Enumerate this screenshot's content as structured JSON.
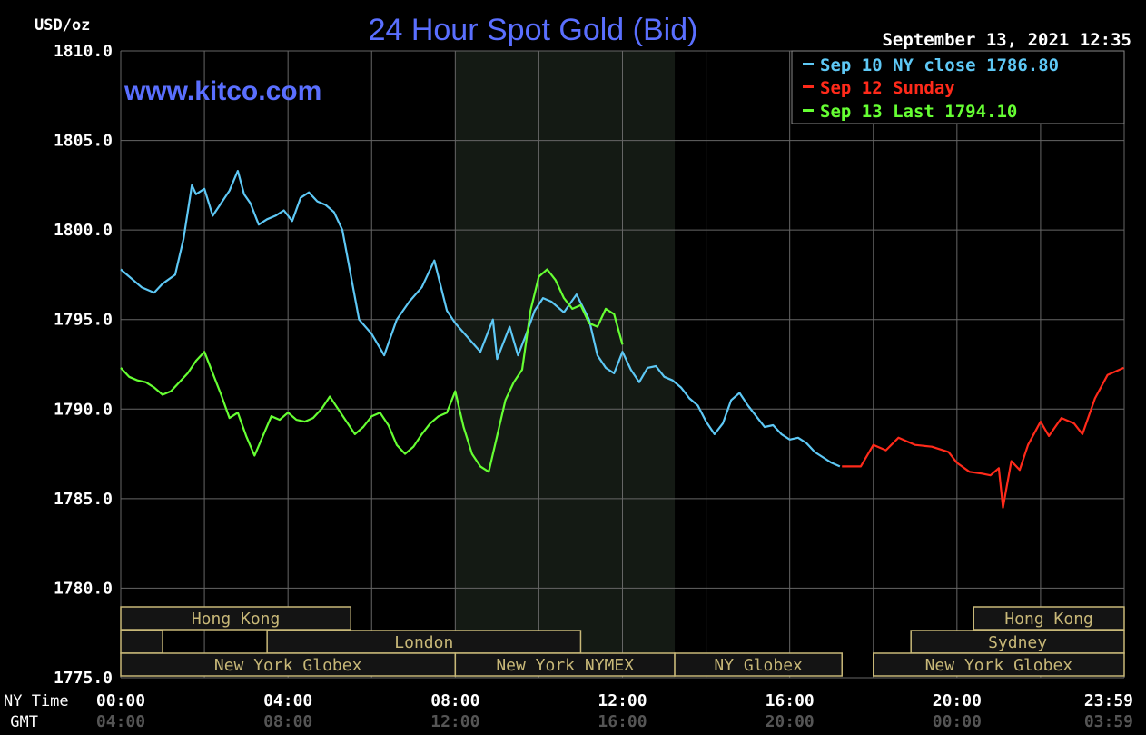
{
  "colors": {
    "background": "#000000",
    "grid": "#666666",
    "axis_text": "#ffffff",
    "gmt_text": "#555555",
    "title": "#5a6fff",
    "session_box": "#c8b878",
    "session_fill": "#141414",
    "highlight": "#141a14",
    "series_sep10": "#5ec8f5",
    "series_sep12": "#ff2a1a",
    "series_sep13": "#66ff33"
  },
  "chart_data": {
    "type": "line",
    "title": "24 Hour Spot Gold (Bid)",
    "watermark": "www.kitco.com",
    "timestamp": "September 13, 2021 12:35",
    "ylabel": "USD/oz",
    "ylim": [
      1775.0,
      1810.0
    ],
    "yticks": [
      "1810.0",
      "1805.0",
      "1800.0",
      "1795.0",
      "1790.0",
      "1785.0",
      "1780.0",
      "1775.0"
    ],
    "xlim": [
      0,
      24
    ],
    "x_row_label": "NY Time",
    "gmt_row_label": "GMT",
    "xtick_labels": [
      "00:00",
      "04:00",
      "08:00",
      "12:00",
      "16:00",
      "20:00",
      "23:59"
    ],
    "gmt_tick_labels": [
      "04:00",
      "08:00",
      "12:00",
      "16:00",
      "20:00",
      "00:00",
      "03:59"
    ],
    "highlight_hours": [
      8.0,
      13.25
    ],
    "legend": [
      {
        "text": "Sep 10 NY close 1786.80",
        "color": "#5ec8f5"
      },
      {
        "text": "Sep 12 Sunday",
        "color": "#ff2a1a"
      },
      {
        "text": "Sep 13 Last 1794.10",
        "color": "#66ff33"
      }
    ],
    "sessions": [
      {
        "label": "Hong Kong",
        "row": 0,
        "start": 0.0,
        "end": 5.5
      },
      {
        "label": "Hong Kong",
        "row": 0,
        "start": 20.4,
        "end": 24.0
      },
      {
        "label": "",
        "row": 1,
        "start": 0.0,
        "end": 1.0
      },
      {
        "label": "London",
        "row": 1,
        "start": 3.5,
        "end": 11.0
      },
      {
        "label": "Sydney",
        "row": 1,
        "start": 18.9,
        "end": 24.0
      },
      {
        "label": "New York Globex",
        "row": 2,
        "start": 0.0,
        "end": 8.0
      },
      {
        "label": "New York NYMEX",
        "row": 2,
        "start": 8.0,
        "end": 13.25
      },
      {
        "label": "NY Globex",
        "row": 2,
        "start": 13.25,
        "end": 17.25
      },
      {
        "label": "New York Globex",
        "row": 2,
        "start": 18.0,
        "end": 24.0
      }
    ],
    "series": [
      {
        "name": "Sep 10 NY close 1786.80",
        "color": "#5ec8f5",
        "x": [
          0.0,
          0.3,
          0.5,
          0.8,
          1.0,
          1.3,
          1.5,
          1.7,
          1.8,
          2.0,
          2.2,
          2.4,
          2.6,
          2.8,
          2.95,
          3.1,
          3.3,
          3.5,
          3.7,
          3.9,
          4.1,
          4.3,
          4.5,
          4.7,
          4.9,
          5.1,
          5.3,
          5.5,
          5.7,
          6.0,
          6.3,
          6.6,
          6.9,
          7.2,
          7.5,
          7.8,
          8.0,
          8.3,
          8.6,
          8.9,
          9.0,
          9.3,
          9.5,
          9.7,
          9.9,
          10.1,
          10.3,
          10.6,
          10.9,
          11.2,
          11.4,
          11.6,
          11.8,
          12.0,
          12.2,
          12.4,
          12.6,
          12.8,
          13.0,
          13.2,
          13.4,
          13.6,
          13.8,
          14.0,
          14.2,
          14.4,
          14.6,
          14.8,
          15.0,
          15.2,
          15.4,
          15.6,
          15.8,
          16.0,
          16.2,
          16.4,
          16.6,
          16.8,
          17.0,
          17.2
        ],
        "values": [
          1797.8,
          1797.2,
          1796.8,
          1796.5,
          1797.0,
          1797.5,
          1799.5,
          1802.5,
          1802.0,
          1802.3,
          1800.8,
          1801.5,
          1802.2,
          1803.3,
          1802.0,
          1801.5,
          1800.3,
          1800.6,
          1800.8,
          1801.1,
          1800.5,
          1801.8,
          1802.1,
          1801.6,
          1801.4,
          1801.0,
          1800.0,
          1797.5,
          1795.0,
          1794.2,
          1793.0,
          1795.0,
          1796.0,
          1796.8,
          1798.3,
          1795.5,
          1794.8,
          1794.0,
          1793.2,
          1795.0,
          1792.8,
          1794.6,
          1793.0,
          1794.2,
          1795.5,
          1796.2,
          1796.0,
          1795.4,
          1796.4,
          1795.0,
          1793.0,
          1792.3,
          1792.0,
          1793.2,
          1792.2,
          1791.5,
          1792.3,
          1792.4,
          1791.8,
          1791.6,
          1791.2,
          1790.6,
          1790.2,
          1789.3,
          1788.6,
          1789.2,
          1790.5,
          1790.9,
          1790.2,
          1789.6,
          1789.0,
          1789.1,
          1788.6,
          1788.3,
          1788.4,
          1788.1,
          1787.6,
          1787.3,
          1787.0,
          1786.8
        ]
      },
      {
        "name": "Sep 12 Sunday",
        "color": "#ff2a1a",
        "x": [
          17.25,
          17.7,
          18.0,
          18.3,
          18.6,
          19.0,
          19.4,
          19.8,
          20.0,
          20.3,
          20.6,
          20.8,
          21.0,
          21.1,
          21.3,
          21.5,
          21.7,
          22.0,
          22.2,
          22.5,
          22.8,
          23.0,
          23.3,
          23.6,
          23.99
        ],
        "values": [
          1786.8,
          1786.8,
          1788.0,
          1787.7,
          1788.4,
          1788.0,
          1787.9,
          1787.6,
          1787.0,
          1786.5,
          1786.4,
          1786.3,
          1786.7,
          1784.5,
          1787.1,
          1786.6,
          1788.0,
          1789.3,
          1788.5,
          1789.5,
          1789.2,
          1788.6,
          1790.6,
          1791.9,
          1792.3
        ]
      },
      {
        "name": "Sep 13 Last 1794.10",
        "color": "#66ff33",
        "x": [
          0.0,
          0.2,
          0.4,
          0.6,
          0.8,
          1.0,
          1.2,
          1.4,
          1.6,
          1.8,
          2.0,
          2.2,
          2.4,
          2.6,
          2.8,
          3.0,
          3.2,
          3.4,
          3.6,
          3.8,
          4.0,
          4.2,
          4.4,
          4.6,
          4.8,
          5.0,
          5.2,
          5.4,
          5.6,
          5.8,
          6.0,
          6.2,
          6.4,
          6.6,
          6.8,
          7.0,
          7.2,
          7.4,
          7.6,
          7.8,
          8.0,
          8.2,
          8.4,
          8.6,
          8.8,
          9.0,
          9.2,
          9.4,
          9.6,
          9.8,
          10.0,
          10.2,
          10.4,
          10.6,
          10.8,
          11.0,
          11.2,
          11.4,
          11.6,
          11.8,
          12.0
        ],
        "values": [
          1792.3,
          1791.8,
          1791.6,
          1791.5,
          1791.2,
          1790.8,
          1791.0,
          1791.5,
          1792.0,
          1792.7,
          1793.2,
          1792.0,
          1790.8,
          1789.5,
          1789.8,
          1788.5,
          1787.4,
          1788.5,
          1789.6,
          1789.4,
          1789.8,
          1789.4,
          1789.3,
          1789.5,
          1790.0,
          1790.7,
          1790.0,
          1789.3,
          1788.6,
          1789.0,
          1789.6,
          1789.8,
          1789.1,
          1788.0,
          1787.5,
          1787.9,
          1788.6,
          1789.2,
          1789.6,
          1789.8,
          1791.0,
          1789.0,
          1787.5,
          1786.8,
          1786.5,
          1788.5,
          1790.5,
          1791.5,
          1792.2,
          1795.5,
          1797.4,
          1797.8,
          1797.2,
          1796.2,
          1795.6,
          1795.8,
          1794.8,
          1794.6,
          1795.6,
          1795.3,
          1793.6
        ]
      }
    ]
  }
}
